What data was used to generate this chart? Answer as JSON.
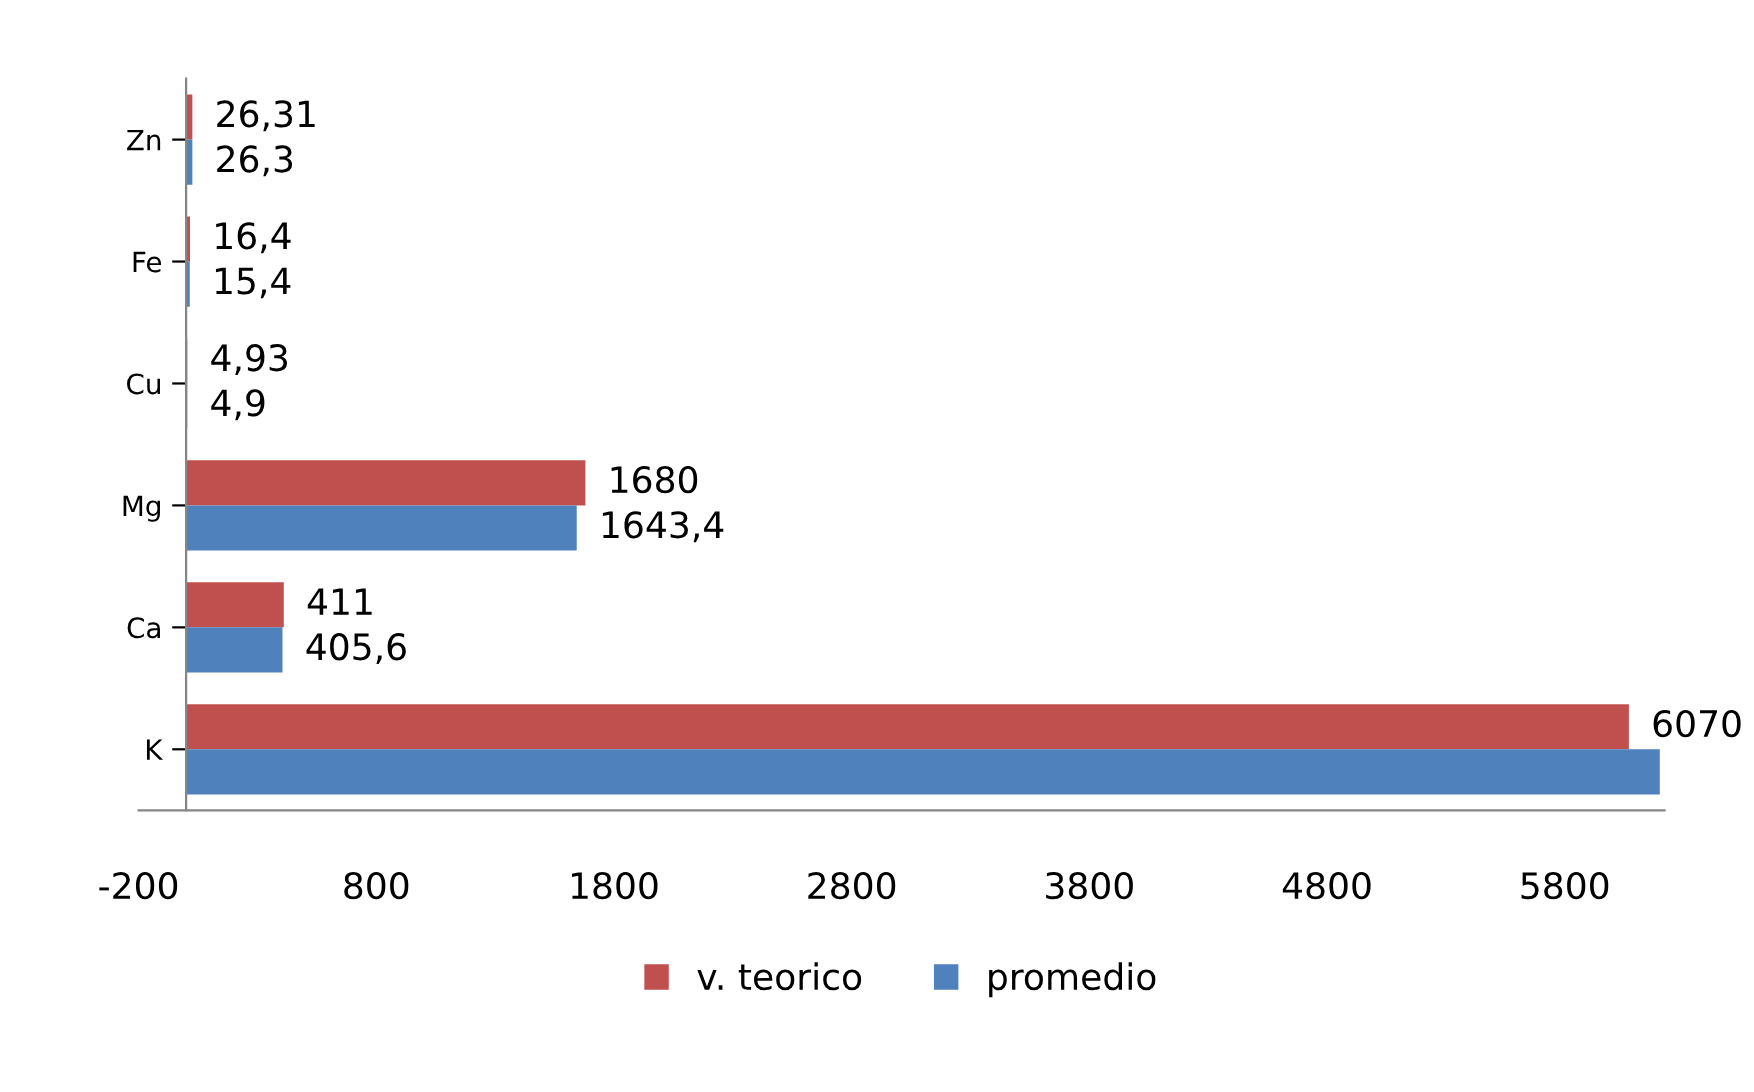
{
  "chart_data": {
    "type": "bar",
    "orientation": "horizontal",
    "categories": [
      "Zn",
      "Fe",
      "Cu",
      "Mg",
      "Ca",
      "K"
    ],
    "series": [
      {
        "name": "v. teorico",
        "color": "#c0504d",
        "values": [
          26.31,
          16.4,
          4.93,
          1680,
          411,
          6070
        ],
        "value_labels": [
          "26,31",
          "16,4",
          "4,93",
          "1680",
          "411",
          "6070"
        ]
      },
      {
        "name": "promedio",
        "color": "#4f81bd",
        "values": [
          26.3,
          15.4,
          4.9,
          1643.4,
          405.6,
          6200
        ],
        "value_labels": [
          "26,3",
          "15,4",
          "4,9",
          "1643,4",
          "405,6",
          null
        ]
      }
    ],
    "xlim": [
      -200,
      6220
    ],
    "xticks": [
      -200,
      800,
      1800,
      2800,
      3800,
      4800,
      5800
    ],
    "grid": false,
    "legend": "bottom"
  }
}
